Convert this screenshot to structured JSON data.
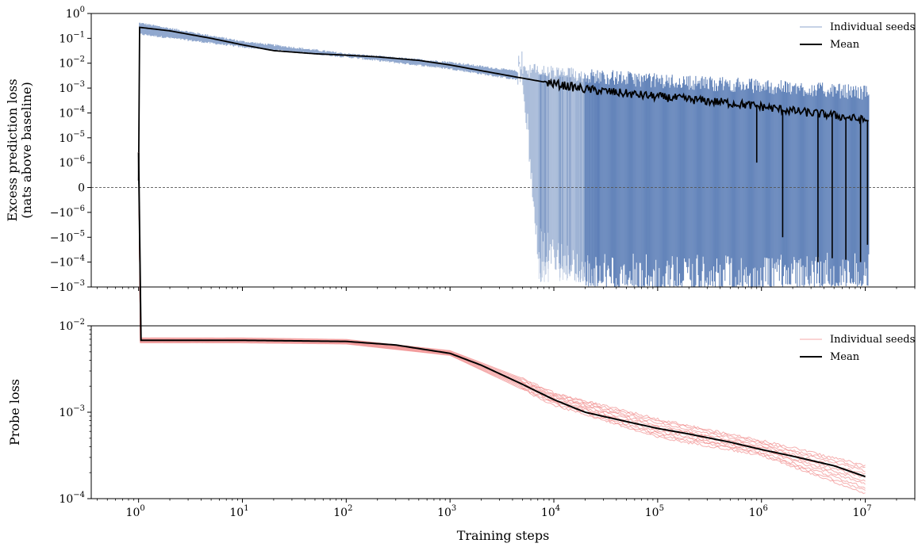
{
  "chart_data": [
    {
      "type": "line",
      "panel": "top",
      "ylabel_line1": "Excess prediction loss",
      "ylabel_line2": "(nats above baseline)",
      "xscale": "log",
      "yscale": "symlog",
      "xlim": [
        0.35,
        30000000
      ],
      "ylim": [
        -0.001,
        1
      ],
      "x_tick_labels": [
        {
          "base": "10",
          "exp": "0",
          "value": 1
        },
        {
          "base": "10",
          "exp": "1",
          "value": 10
        },
        {
          "base": "10",
          "exp": "2",
          "value": 100
        },
        {
          "base": "10",
          "exp": "3",
          "value": 1000
        },
        {
          "base": "10",
          "exp": "4",
          "value": 10000
        },
        {
          "base": "10",
          "exp": "5",
          "value": 100000
        },
        {
          "base": "10",
          "exp": "6",
          "value": 1000000
        },
        {
          "base": "10",
          "exp": "7",
          "value": 10000000
        }
      ],
      "y_tick_labels": [
        {
          "base": "10",
          "exp": "0",
          "value": 1
        },
        {
          "base": "10",
          "exp": "−1",
          "value": 0.1
        },
        {
          "base": "10",
          "exp": "−2",
          "value": 0.01
        },
        {
          "base": "10",
          "exp": "−3",
          "value": 0.001
        },
        {
          "base": "10",
          "exp": "−4",
          "value": 0.0001
        },
        {
          "base": "10",
          "exp": "−5",
          "value": 1e-05
        },
        {
          "base": "10",
          "exp": "−6",
          "value": 1e-06
        },
        {
          "base": "0",
          "exp": "",
          "value": 0
        },
        {
          "base": "−10",
          "exp": "−6",
          "value": -1e-06
        },
        {
          "base": "−10",
          "exp": "−5",
          "value": -1e-05
        },
        {
          "base": "−10",
          "exp": "−4",
          "value": -0.0001
        },
        {
          "base": "−10",
          "exp": "−3",
          "value": -0.001
        }
      ],
      "zero_line": true,
      "legend": {
        "placement": "top-right",
        "entries": [
          "Individual seeds",
          "Mean"
        ]
      },
      "series": [
        {
          "name": "Mean",
          "color": "#000000",
          "x": [
            1,
            2,
            5,
            10,
            20,
            50,
            100,
            200,
            500,
            1000,
            2000,
            5000,
            10000,
            20000,
            50000,
            100000,
            200000,
            500000,
            1000000,
            2000000,
            5000000,
            10000000
          ],
          "y": [
            0.28,
            0.2,
            0.1,
            0.055,
            0.032,
            0.024,
            0.021,
            0.018,
            0.013,
            0.0085,
            0.005,
            0.0025,
            0.0015,
            0.0009,
            0.0006,
            0.00045,
            0.00035,
            0.00025,
            0.00018,
            0.00012,
            8e-05,
            5e-05
          ]
        },
        {
          "name": "Individual seeds",
          "color": "#4c72b0",
          "upper_envelope": {
            "x": [
              1,
              10,
              100,
              1000,
              10000,
              100000,
              1000000,
              10000000
            ],
            "y": [
              0.42,
              0.075,
              0.024,
              0.011,
              0.003,
              0.0015,
              0.0009,
              0.0005
            ]
          },
          "lower_envelope": {
            "x": [
              1,
              10,
              100,
              1000,
              5000,
              7000,
              20000,
              100000,
              1000000,
              10000000
            ],
            "y": [
              0.15,
              0.045,
              0.018,
              0.006,
              0.002,
              -5e-05,
              -0.0006,
              -0.0008,
              -0.0008,
              -0.0006
            ]
          }
        }
      ],
      "mean_negative_spikes": [
        {
          "x": 900000,
          "y": 1e-06
        },
        {
          "x": 1600000,
          "y": -1e-05
        },
        {
          "x": 3500000,
          "y": -0.0001
        },
        {
          "x": 4800000,
          "y": -7e-05
        },
        {
          "x": 6500000,
          "y": -8e-05
        },
        {
          "x": 9000000,
          "y": -0.0001
        },
        {
          "x": 10500000,
          "y": -2e-05
        }
      ]
    },
    {
      "type": "line",
      "panel": "bottom",
      "xlabel": "Training steps",
      "ylabel": "Probe loss",
      "xscale": "log",
      "yscale": "log",
      "xlim": [
        0.35,
        30000000
      ],
      "ylim": [
        0.0001,
        0.01
      ],
      "x_tick_labels": [
        {
          "base": "10",
          "exp": "0",
          "value": 1
        },
        {
          "base": "10",
          "exp": "1",
          "value": 10
        },
        {
          "base": "10",
          "exp": "2",
          "value": 100
        },
        {
          "base": "10",
          "exp": "3",
          "value": 1000
        },
        {
          "base": "10",
          "exp": "4",
          "value": 10000
        },
        {
          "base": "10",
          "exp": "5",
          "value": 100000
        },
        {
          "base": "10",
          "exp": "6",
          "value": 1000000
        },
        {
          "base": "10",
          "exp": "7",
          "value": 10000000
        }
      ],
      "y_tick_labels": [
        {
          "base": "10",
          "exp": "−2",
          "value": 0.01
        },
        {
          "base": "10",
          "exp": "−3",
          "value": 0.001
        },
        {
          "base": "10",
          "exp": "−4",
          "value": 0.0001
        }
      ],
      "legend": {
        "placement": "top-right",
        "entries": [
          "Individual seeds",
          "Mean"
        ]
      },
      "series": [
        {
          "name": "Mean",
          "color": "#000000",
          "x": [
            1,
            10,
            100,
            300,
            1000,
            2000,
            5000,
            10000,
            20000,
            50000,
            100000,
            200000,
            500000,
            1000000,
            2000000,
            5000000,
            10000000
          ],
          "y": [
            0.0068,
            0.0068,
            0.0066,
            0.006,
            0.0048,
            0.0035,
            0.0021,
            0.0014,
            0.001,
            0.00078,
            0.00065,
            0.00056,
            0.00045,
            0.00037,
            0.00031,
            0.00024,
            0.00018
          ]
        },
        {
          "name": "Individual seeds",
          "color": "#ee7a7a",
          "upper_envelope": {
            "x": [
              1,
              10,
              100,
              1000,
              5000,
              10000,
              100000,
              1000000,
              10000000
            ],
            "y": [
              0.0073,
              0.0073,
              0.007,
              0.0052,
              0.0025,
              0.0017,
              0.00085,
              0.00048,
              0.00026
            ]
          },
          "lower_envelope": {
            "x": [
              1,
              10,
              100,
              1000,
              5000,
              10000,
              100000,
              1000000,
              10000000
            ],
            "y": [
              0.0063,
              0.0063,
              0.0061,
              0.0045,
              0.0018,
              0.0012,
              0.0005,
              0.00031,
              0.00011
            ]
          }
        }
      ]
    }
  ]
}
